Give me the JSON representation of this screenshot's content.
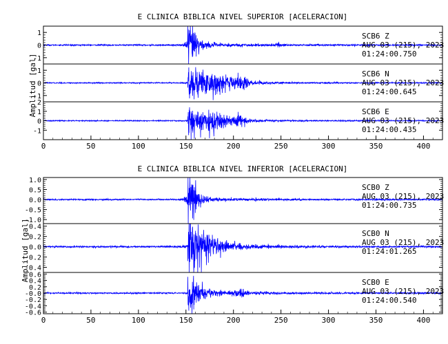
{
  "chart_data": [
    {
      "type": "line",
      "title": "E CLINICA BIBLICA NIVEL SUPERIOR [ACELERACION]",
      "ylabel": "Amplitud [gal]",
      "xlim": [
        0,
        420
      ],
      "x_ticks": [
        0,
        50,
        100,
        150,
        200,
        250,
        300,
        350,
        400
      ],
      "series": [
        {
          "name": "SCB6 Z",
          "line1": "SCB6   Z",
          "line2": "AUG 03 (215), 2023",
          "line3": "01:24:00.750",
          "ylim": [
            -1.5,
            1.5
          ],
          "y_ticks": [
            -1,
            0,
            1
          ],
          "y_tick_labels": [
            "-1",
            "0",
            "1"
          ],
          "onset": 152,
          "peak": 1.3,
          "noise": 0.05,
          "decay": 7,
          "coda_amp": 0.15,
          "coda_decay": 60,
          "bursts": [
            {
              "t": 157,
              "a": 0.6,
              "d": 5
            },
            {
              "t": 248,
              "a": 0.1,
              "d": 3
            }
          ]
        },
        {
          "name": "SCB6 N",
          "line1": "SCB6   N",
          "line2": "AUG 03 (215), 2023",
          "line3": "01:24:00.645",
          "ylim": [
            -1.5,
            1.5
          ],
          "y_ticks": [
            -1,
            0,
            1
          ],
          "y_tick_labels": [
            "-1",
            "0",
            "1"
          ],
          "onset": 152,
          "peak": 1.1,
          "noise": 0.04,
          "decay": 22,
          "coda_amp": 0.2,
          "coda_decay": 45,
          "bursts": [
            {
              "t": 178,
              "a": 0.55,
              "d": 10
            },
            {
              "t": 207,
              "a": 0.35,
              "d": 6
            }
          ]
        },
        {
          "name": "SCB6 E",
          "line1": "SCB6   E",
          "line2": "AUG 03 (215), 2023",
          "line3": "01:24:00.435",
          "ylim": [
            -2,
            2
          ],
          "y_ticks": [
            -1,
            0,
            1,
            2
          ],
          "y_tick_labels": [
            "-1",
            "0",
            "1",
            "2"
          ],
          "onset": 152,
          "peak": 1.5,
          "noise": 0.05,
          "decay": 18,
          "coda_amp": 0.25,
          "coda_decay": 45,
          "bursts": [
            {
              "t": 178,
              "a": 0.6,
              "d": 10
            },
            {
              "t": 207,
              "a": 0.4,
              "d": 6
            }
          ]
        }
      ]
    },
    {
      "type": "line",
      "title": "E CLINICA BIBLICA NIVEL INFERIOR [ACELERACION]",
      "ylabel": "Amplitud [gal]",
      "xlim": [
        0,
        420
      ],
      "x_ticks": [
        0,
        50,
        100,
        150,
        200,
        250,
        300,
        350,
        400
      ],
      "series": [
        {
          "name": "SCB0 Z",
          "line1": "SCB0   Z",
          "line2": "AUG 03 (215), 2023",
          "line3": "01:24:00.735",
          "ylim": [
            -1.2,
            1.1
          ],
          "y_ticks": [
            -1.0,
            -0.5,
            0.0,
            0.5,
            1.0
          ],
          "y_tick_labels": [
            "-1.0",
            "-0.5",
            "0.0",
            "0.5",
            "1.0"
          ],
          "onset": 152,
          "peak": 1.0,
          "noise": 0.03,
          "decay": 6,
          "coda_amp": 0.1,
          "coda_decay": 50,
          "bursts": [
            {
              "t": 157,
              "a": 0.4,
              "d": 5
            }
          ]
        },
        {
          "name": "SCB0 N",
          "line1": "SCB0   N",
          "line2": "AUG 03 (215), 2023",
          "line3": "01:24:01.265",
          "ylim": [
            -0.5,
            0.45
          ],
          "y_ticks": [
            -0.4,
            -0.2,
            0.0,
            0.2,
            0.4
          ],
          "y_tick_labels": [
            "-0.4",
            "-0.2",
            "0.0",
            "0.2",
            "0.4"
          ],
          "onset": 152,
          "peak": 0.42,
          "noise": 0.015,
          "decay": 14,
          "coda_amp": 0.12,
          "coda_decay": 45,
          "bursts": [
            {
              "t": 170,
              "a": 0.1,
              "d": 12
            }
          ]
        },
        {
          "name": "SCB0 E",
          "line1": "SCB0   E",
          "line2": "AUG 03 (215), 2023",
          "line3": "01:24:00.540",
          "ylim": [
            -0.65,
            0.65
          ],
          "y_ticks": [
            -0.6,
            -0.4,
            -0.2,
            0.0,
            0.2,
            0.4,
            0.6
          ],
          "y_tick_labels": [
            "-0.6",
            "-0.4",
            "-0.2",
            "-0.0",
            "0.2",
            "0.4",
            "0.6"
          ],
          "onset": 152,
          "peak": 0.55,
          "noise": 0.02,
          "decay": 10,
          "coda_amp": 0.1,
          "coda_decay": 50,
          "bursts": [
            {
              "t": 208,
              "a": 0.08,
              "d": 5
            }
          ]
        }
      ]
    }
  ],
  "colors": {
    "trace": "#0000ff",
    "axis": "#000000",
    "text": "#000000"
  }
}
